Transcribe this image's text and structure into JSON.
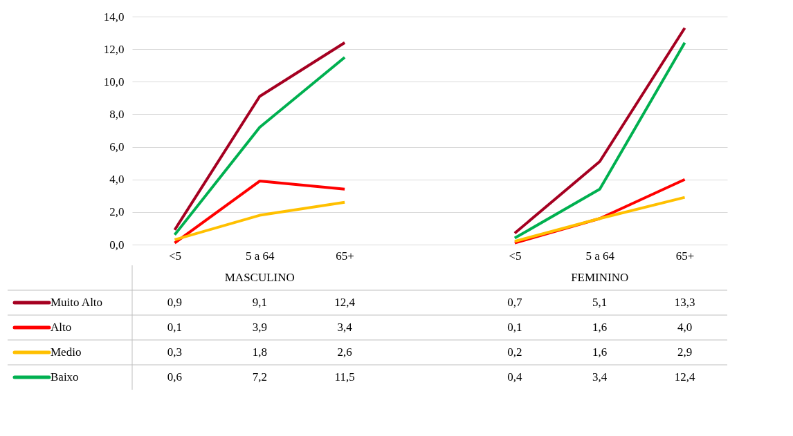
{
  "chart_data": {
    "type": "line",
    "categories": [
      "<5",
      "5 a 64",
      "65+",
      null,
      "<5",
      "5 a 64",
      "65+"
    ],
    "series": [
      {
        "name": "Muito Alto",
        "color": "#a50021",
        "values": [
          0.9,
          9.1,
          12.4,
          null,
          0.7,
          5.1,
          13.3
        ],
        "value_labels": [
          "0,9",
          "9,1",
          "12,4",
          null,
          "0,7",
          "5,1",
          "13,3"
        ]
      },
      {
        "name": "Alto",
        "color": "#ff0000",
        "values": [
          0.1,
          3.9,
          3.4,
          null,
          0.1,
          1.6,
          4.0
        ],
        "value_labels": [
          "0,1",
          "3,9",
          "3,4",
          null,
          "0,1",
          "1,6",
          "4,0"
        ]
      },
      {
        "name": "Medio",
        "color": "#ffc000",
        "values": [
          0.3,
          1.8,
          2.6,
          null,
          0.2,
          1.6,
          2.9
        ],
        "value_labels": [
          "0,3",
          "1,8",
          "2,6",
          null,
          "0,2",
          "1,6",
          "2,9"
        ]
      },
      {
        "name": "Baixo",
        "color": "#00b050",
        "values": [
          0.6,
          7.2,
          11.5,
          null,
          0.4,
          3.4,
          12.4
        ],
        "value_labels": [
          "0,6",
          "7,2",
          "11,5",
          null,
          "0,4",
          "3,4",
          "12,4"
        ]
      }
    ],
    "annotations": [
      "MASCULINO",
      "FEMININO"
    ],
    "ylim": [
      0,
      14
    ],
    "yticks": [
      {
        "value": 0,
        "label": "0,0"
      },
      {
        "value": 2,
        "label": "2,0"
      },
      {
        "value": 4,
        "label": "4,0"
      },
      {
        "value": 6,
        "label": "6,0"
      },
      {
        "value": 8,
        "label": "8,0"
      },
      {
        "value": 10,
        "label": "10,0"
      },
      {
        "value": 12,
        "label": "12,0"
      },
      {
        "value": 14,
        "label": "14,0"
      }
    ],
    "grid": "y",
    "legend": "bottom",
    "marker": "none",
    "line_style": "solid"
  }
}
